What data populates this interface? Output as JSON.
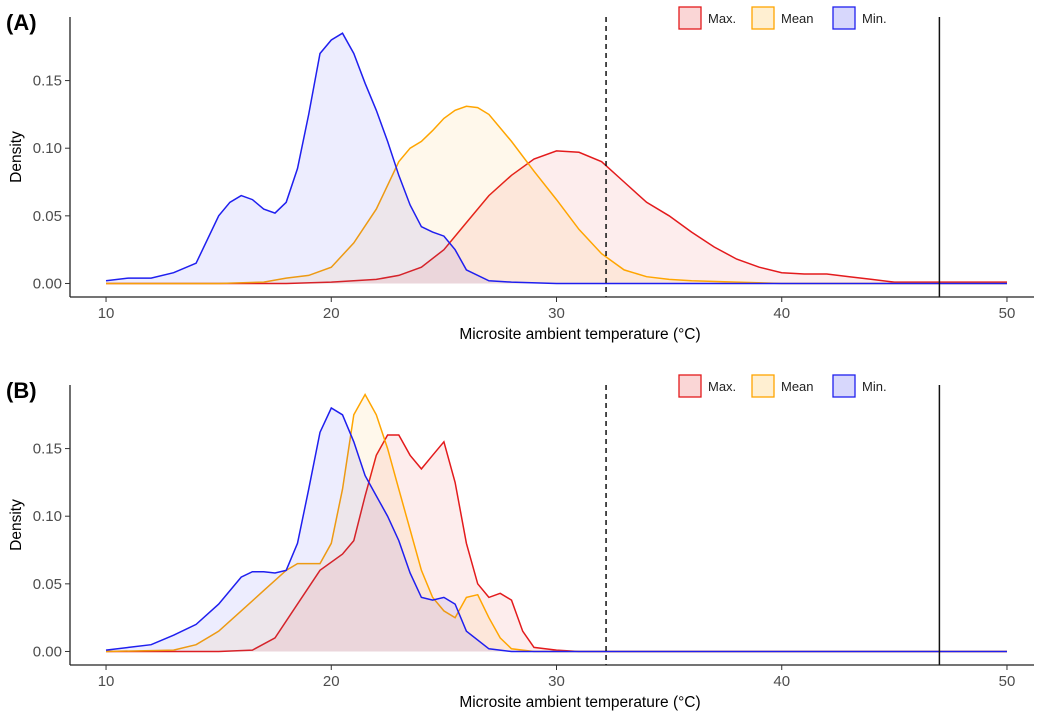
{
  "chart_data": [
    {
      "type": "area",
      "panel_label": "(A)",
      "xlabel": "Microsite ambient temperature (°C)",
      "ylabel": "Density",
      "xlim": [
        8.4,
        51.2
      ],
      "ylim": [
        -0.01,
        0.197
      ],
      "x_ticks": [
        10,
        20,
        30,
        40,
        50
      ],
      "y_ticks": [
        0.0,
        0.05,
        0.1,
        0.15
      ],
      "y_tick_labels": [
        "0.00",
        "0.05",
        "0.10",
        "0.15"
      ],
      "reference_lines": [
        {
          "x": 32.2,
          "style": "dashed"
        },
        {
          "x": 47.0,
          "style": "solid"
        }
      ],
      "legend_position": "top-right",
      "series": [
        {
          "name": "Max.",
          "color": "#e31a1c",
          "x": [
            10,
            15,
            18,
            20,
            22,
            23,
            24,
            25,
            26,
            27,
            28,
            29,
            30,
            31,
            32,
            33,
            34,
            35,
            36,
            37,
            38,
            39,
            40,
            41,
            42,
            43,
            44,
            45,
            46,
            47,
            48,
            49,
            50
          ],
          "y": [
            0,
            0,
            0,
            0.001,
            0.003,
            0.006,
            0.012,
            0.025,
            0.045,
            0.065,
            0.08,
            0.092,
            0.098,
            0.097,
            0.09,
            0.075,
            0.06,
            0.05,
            0.038,
            0.027,
            0.018,
            0.012,
            0.008,
            0.007,
            0.007,
            0.005,
            0.003,
            0.001,
            0.001,
            0.001,
            0.001,
            0.001,
            0.001
          ]
        },
        {
          "name": "Mean",
          "color": "#ffa500",
          "x": [
            10,
            15,
            17,
            18,
            19,
            20,
            21,
            22,
            23,
            23.5,
            24,
            24.5,
            25,
            25.5,
            26,
            26.5,
            27,
            28,
            29,
            30,
            31,
            32,
            33,
            34,
            35,
            36,
            38,
            40,
            45,
            50
          ],
          "y": [
            0,
            0,
            0.001,
            0.004,
            0.006,
            0.012,
            0.03,
            0.055,
            0.09,
            0.1,
            0.105,
            0.113,
            0.122,
            0.128,
            0.131,
            0.13,
            0.125,
            0.105,
            0.083,
            0.062,
            0.04,
            0.022,
            0.01,
            0.005,
            0.003,
            0.002,
            0.001,
            0,
            0,
            0
          ]
        },
        {
          "name": "Min.",
          "color": "#1f1fef",
          "x": [
            10,
            11,
            12,
            13,
            14,
            15,
            15.5,
            16,
            16.5,
            17,
            17.5,
            18,
            18.5,
            19,
            19.5,
            20,
            20.5,
            21,
            21.5,
            22,
            22.5,
            23,
            23.5,
            24,
            24.5,
            25,
            25.5,
            26,
            27,
            28,
            30,
            35,
            40,
            50
          ],
          "y": [
            0.002,
            0.004,
            0.004,
            0.008,
            0.015,
            0.05,
            0.06,
            0.065,
            0.062,
            0.055,
            0.052,
            0.06,
            0.085,
            0.125,
            0.17,
            0.18,
            0.185,
            0.17,
            0.148,
            0.128,
            0.105,
            0.08,
            0.058,
            0.042,
            0.038,
            0.035,
            0.025,
            0.01,
            0.002,
            0.001,
            0,
            0,
            0,
            0
          ]
        }
      ]
    },
    {
      "type": "area",
      "panel_label": "(B)",
      "xlabel": "Microsite ambient temperature (°C)",
      "ylabel": "Density",
      "xlim": [
        8.4,
        51.2
      ],
      "ylim": [
        -0.01,
        0.197
      ],
      "x_ticks": [
        10,
        20,
        30,
        40,
        50
      ],
      "y_ticks": [
        0.0,
        0.05,
        0.1,
        0.15
      ],
      "y_tick_labels": [
        "0.00",
        "0.05",
        "0.10",
        "0.15"
      ],
      "reference_lines": [
        {
          "x": 32.2,
          "style": "dashed"
        },
        {
          "x": 47.0,
          "style": "solid"
        }
      ],
      "legend_position": "top-right",
      "series": [
        {
          "name": "Max.",
          "color": "#e31a1c",
          "x": [
            10,
            15,
            16.5,
            17.5,
            18.5,
            19.5,
            20.5,
            21,
            21.5,
            22,
            22.5,
            23,
            23.5,
            24,
            24.5,
            25,
            25.5,
            26,
            26.5,
            27,
            27.5,
            28,
            28.5,
            29,
            30,
            31,
            35,
            40,
            50
          ],
          "y": [
            0,
            0,
            0.001,
            0.01,
            0.035,
            0.06,
            0.072,
            0.082,
            0.115,
            0.145,
            0.16,
            0.16,
            0.145,
            0.135,
            0.145,
            0.155,
            0.125,
            0.08,
            0.05,
            0.04,
            0.043,
            0.038,
            0.015,
            0.003,
            0.001,
            0,
            0,
            0,
            0
          ]
        },
        {
          "name": "Mean",
          "color": "#ffa500",
          "x": [
            10,
            13,
            14,
            15,
            16,
            17,
            18,
            18.5,
            19,
            19.5,
            20,
            20.5,
            21,
            21.5,
            22,
            22.5,
            23,
            23.5,
            24,
            24.5,
            25,
            25.5,
            26,
            26.5,
            27,
            27.5,
            28,
            29,
            30,
            50
          ],
          "y": [
            0,
            0.001,
            0.005,
            0.015,
            0.03,
            0.045,
            0.06,
            0.065,
            0.065,
            0.065,
            0.08,
            0.12,
            0.175,
            0.19,
            0.175,
            0.15,
            0.12,
            0.09,
            0.06,
            0.04,
            0.03,
            0.025,
            0.04,
            0.042,
            0.025,
            0.01,
            0.002,
            0,
            0,
            0
          ]
        },
        {
          "name": "Min.",
          "color": "#1f1fef",
          "x": [
            10,
            11,
            12,
            13,
            14,
            15,
            16,
            16.5,
            17,
            17.5,
            18,
            18.5,
            19,
            19.5,
            20,
            20.5,
            21,
            21.5,
            22,
            22.5,
            23,
            23.5,
            24,
            24.5,
            25,
            25.5,
            26,
            27,
            28,
            30,
            35,
            40,
            50
          ],
          "y": [
            0.001,
            0.003,
            0.005,
            0.012,
            0.02,
            0.035,
            0.055,
            0.059,
            0.059,
            0.058,
            0.06,
            0.08,
            0.12,
            0.162,
            0.18,
            0.175,
            0.155,
            0.13,
            0.115,
            0.1,
            0.082,
            0.058,
            0.04,
            0.038,
            0.04,
            0.035,
            0.015,
            0.002,
            0,
            0,
            0,
            0,
            0
          ]
        }
      ]
    }
  ]
}
